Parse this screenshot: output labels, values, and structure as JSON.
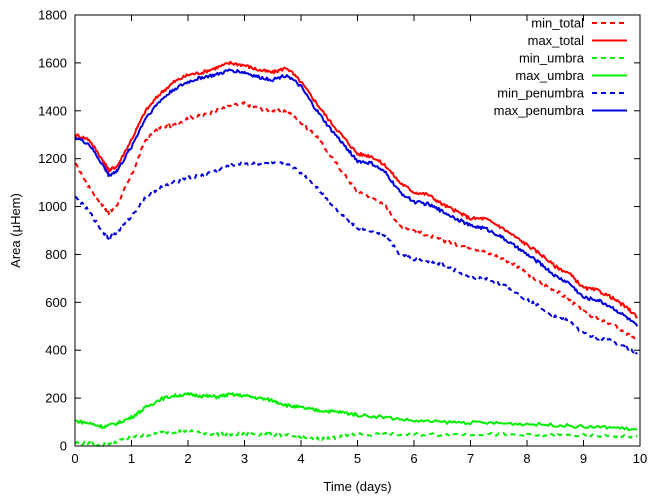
{
  "chart_data": {
    "type": "line",
    "xlabel": "Time (days)",
    "ylabel": "Area (μHem)",
    "xlim": [
      0,
      10
    ],
    "ylim": [
      0,
      1800
    ],
    "x_ticks": [
      0,
      1,
      2,
      3,
      4,
      5,
      6,
      7,
      8,
      9,
      10
    ],
    "y_ticks": [
      0,
      200,
      400,
      600,
      800,
      1000,
      1200,
      1400,
      1600,
      1800
    ],
    "grid": false,
    "legend_position": "top-right",
    "series": [
      {
        "name": "min_total",
        "color": "#ff0000",
        "dash": "dashed",
        "x": [
          0,
          0.25,
          0.5,
          0.6,
          0.75,
          1.0,
          1.25,
          1.5,
          1.75,
          2.0,
          2.25,
          2.5,
          2.75,
          3.0,
          3.25,
          3.5,
          3.75,
          4.0,
          4.25,
          4.5,
          4.75,
          5.0,
          5.25,
          5.5,
          5.75,
          6.0,
          6.25,
          6.5,
          6.75,
          7.0,
          7.25,
          7.5,
          7.75,
          8.0,
          8.25,
          8.5,
          8.75,
          9.0,
          9.25,
          9.5,
          9.75,
          9.95
        ],
        "y": [
          1180,
          1080,
          1000,
          970,
          1010,
          1130,
          1280,
          1330,
          1340,
          1370,
          1380,
          1400,
          1420,
          1430,
          1410,
          1400,
          1400,
          1350,
          1300,
          1220,
          1140,
          1060,
          1040,
          1000,
          920,
          900,
          880,
          860,
          840,
          830,
          810,
          790,
          760,
          720,
          680,
          650,
          610,
          560,
          530,
          510,
          470,
          440
        ]
      },
      {
        "name": "max_total",
        "color": "#ff0000",
        "dash": "solid",
        "x": [
          0,
          0.25,
          0.5,
          0.6,
          0.75,
          1.0,
          1.25,
          1.5,
          1.75,
          2.0,
          2.25,
          2.5,
          2.75,
          3.0,
          3.25,
          3.5,
          3.75,
          4.0,
          4.25,
          4.5,
          4.75,
          5.0,
          5.25,
          5.5,
          5.75,
          6.0,
          6.25,
          6.5,
          6.75,
          7.0,
          7.25,
          7.5,
          7.75,
          8.0,
          8.25,
          8.5,
          8.75,
          9.0,
          9.25,
          9.5,
          9.75,
          9.95
        ],
        "y": [
          1300,
          1280,
          1190,
          1150,
          1170,
          1280,
          1400,
          1470,
          1520,
          1550,
          1560,
          1580,
          1600,
          1590,
          1570,
          1560,
          1580,
          1520,
          1440,
          1360,
          1290,
          1220,
          1210,
          1170,
          1100,
          1060,
          1050,
          1010,
          980,
          950,
          950,
          920,
          880,
          840,
          800,
          750,
          720,
          660,
          650,
          620,
          580,
          540
        ]
      },
      {
        "name": "min_umbra",
        "color": "#00ee00",
        "dash": "dashed",
        "x": [
          0,
          0.25,
          0.5,
          0.75,
          1.0,
          1.25,
          1.5,
          1.75,
          2.0,
          2.25,
          2.5,
          2.75,
          3.0,
          3.25,
          3.5,
          3.75,
          4.0,
          4.25,
          4.5,
          4.75,
          5.0,
          5.5,
          6.0,
          6.5,
          7.0,
          7.5,
          8.0,
          8.5,
          9.0,
          9.5,
          9.95
        ],
        "y": [
          15,
          10,
          5,
          20,
          35,
          45,
          55,
          60,
          65,
          55,
          50,
          48,
          50,
          50,
          48,
          45,
          35,
          30,
          32,
          40,
          48,
          48,
          48,
          47,
          50,
          48,
          45,
          44,
          44,
          42,
          40
        ]
      },
      {
        "name": "max_umbra",
        "color": "#00ee00",
        "dash": "solid",
        "x": [
          0,
          0.25,
          0.5,
          0.75,
          1.0,
          1.25,
          1.5,
          1.75,
          2.0,
          2.25,
          2.5,
          2.75,
          3.0,
          3.25,
          3.5,
          3.75,
          4.0,
          4.25,
          4.5,
          4.75,
          5.0,
          5.5,
          6.0,
          6.5,
          7.0,
          7.5,
          8.0,
          8.5,
          9.0,
          9.5,
          9.95
        ],
        "y": [
          105,
          95,
          80,
          95,
          120,
          160,
          195,
          210,
          215,
          210,
          205,
          215,
          210,
          200,
          190,
          170,
          160,
          150,
          145,
          140,
          130,
          120,
          105,
          100,
          98,
          95,
          92,
          88,
          80,
          78,
          68
        ]
      },
      {
        "name": "min_penumbra",
        "color": "#0000dd",
        "dash": "dashed",
        "x": [
          0,
          0.25,
          0.5,
          0.6,
          0.75,
          1.0,
          1.25,
          1.5,
          1.75,
          2.0,
          2.25,
          2.5,
          2.75,
          3.0,
          3.25,
          3.5,
          3.75,
          4.0,
          4.25,
          4.5,
          4.75,
          5.0,
          5.25,
          5.5,
          5.75,
          6.0,
          6.25,
          6.5,
          6.75,
          7.0,
          7.25,
          7.5,
          7.75,
          8.0,
          8.25,
          8.5,
          8.75,
          9.0,
          9.25,
          9.5,
          9.75,
          9.95
        ],
        "y": [
          1040,
          980,
          890,
          870,
          890,
          960,
          1040,
          1080,
          1100,
          1120,
          1130,
          1150,
          1170,
          1180,
          1180,
          1180,
          1180,
          1140,
          1090,
          1020,
          960,
          910,
          900,
          880,
          800,
          780,
          770,
          760,
          730,
          700,
          700,
          680,
          650,
          610,
          580,
          540,
          520,
          470,
          450,
          440,
          410,
          390
        ]
      },
      {
        "name": "max_penumbra",
        "color": "#0000dd",
        "dash": "solid",
        "x": [
          0,
          0.25,
          0.5,
          0.6,
          0.75,
          1.0,
          1.25,
          1.5,
          1.75,
          2.0,
          2.25,
          2.5,
          2.75,
          3.0,
          3.25,
          3.5,
          3.75,
          4.0,
          4.25,
          4.5,
          4.75,
          5.0,
          5.25,
          5.5,
          5.75,
          6.0,
          6.25,
          6.5,
          6.75,
          7.0,
          7.25,
          7.5,
          7.75,
          8.0,
          8.25,
          8.5,
          8.75,
          9.0,
          9.25,
          9.5,
          9.75,
          9.95
        ],
        "y": [
          1290,
          1260,
          1170,
          1130,
          1150,
          1250,
          1370,
          1440,
          1490,
          1520,
          1540,
          1550,
          1570,
          1560,
          1540,
          1530,
          1550,
          1500,
          1410,
          1330,
          1260,
          1190,
          1180,
          1140,
          1060,
          1020,
          1010,
          980,
          950,
          920,
          910,
          880,
          840,
          800,
          760,
          710,
          680,
          620,
          610,
          580,
          540,
          500
        ]
      }
    ]
  }
}
